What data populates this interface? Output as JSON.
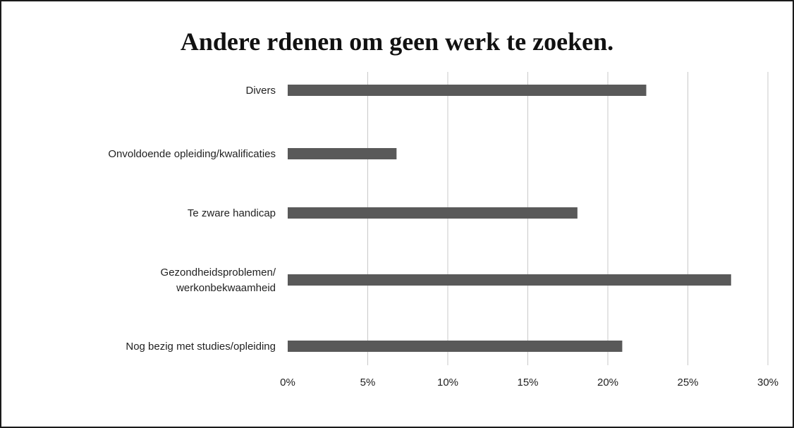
{
  "chart_data": {
    "type": "bar",
    "orientation": "horizontal",
    "title": "Andere rdenen om geen werk te zoeken.",
    "categories": [
      [
        "Divers"
      ],
      [
        "Onvoldoende opleiding/kwalificaties"
      ],
      [
        "Te zware handicap"
      ],
      [
        "Gezondheidsproblemen/",
        "werkonbekwaamheid"
      ],
      [
        "Nog bezig met studies/opleiding"
      ]
    ],
    "values": [
      22.4,
      6.8,
      18.1,
      27.7,
      20.9
    ],
    "xlim": [
      0,
      30
    ],
    "xticks": [
      0,
      5,
      10,
      15,
      20,
      25,
      30
    ],
    "xtick_labels": [
      "0%",
      "5%",
      "10%",
      "15%",
      "20%",
      "25%",
      "30%"
    ],
    "grid": "vertical",
    "bar_color": "#595959",
    "grid_color": "#c8c8c8"
  }
}
